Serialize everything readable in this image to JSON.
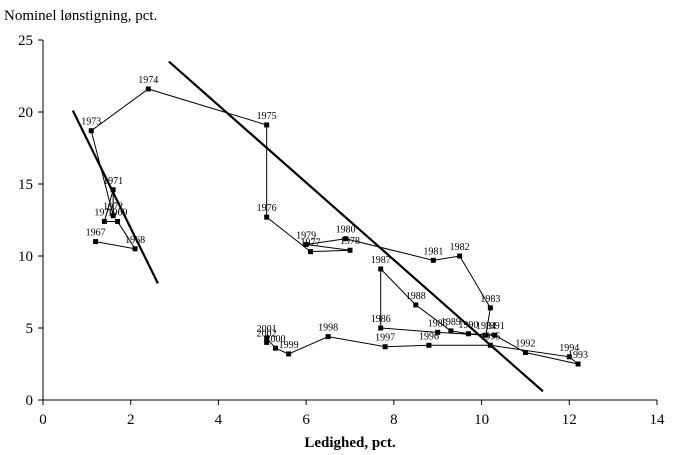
{
  "chart_data": {
    "type": "line",
    "y_label": "Nominel lønstigning, pct.",
    "x_label": "Ledighed, pct.",
    "x": [
      1.2,
      2.1,
      1.7,
      1.4,
      1.6,
      1.6,
      1.1,
      2.4,
      5.1,
      5.1,
      6.1,
      7.0,
      6.0,
      6.9,
      8.9,
      9.5,
      10.2,
      10.1,
      9.0,
      7.7,
      7.7,
      8.5,
      9.3,
      9.7,
      10.3,
      11.0,
      12.2,
      12.0,
      10.2,
      8.8,
      7.8,
      6.5,
      5.6,
      5.3,
      5.1,
      5.1
    ],
    "series": [
      {
        "color": "#000000",
        "values": [
          11.0,
          10.5,
          12.4,
          12.4,
          14.6,
          12.8,
          18.7,
          21.6,
          19.1,
          12.7,
          10.3,
          10.4,
          10.8,
          11.2,
          9.7,
          10.0,
          6.4,
          4.5,
          4.7,
          5.0,
          9.1,
          6.6,
          4.8,
          4.6,
          4.5,
          3.3,
          2.5,
          3.0,
          3.8,
          3.8,
          3.7,
          4.4,
          3.2,
          3.6,
          4.3,
          4.0
        ]
      }
    ],
    "point_labels": [
      "1967",
      "1968",
      "1969",
      "1970",
      "1971",
      "1972",
      "1973",
      "1974",
      "1975",
      "1976",
      "1977",
      "1978",
      "1979",
      "1980",
      "1981",
      "1982",
      "1983",
      "1984",
      "1985",
      "1986",
      "1987",
      "1988",
      "1989",
      "1990",
      "1991",
      "1992",
      "1993",
      "1994",
      "1995",
      "1996",
      "1997",
      "1998",
      "1999",
      "2000",
      "2001",
      "2002"
    ],
    "trend_lines": [
      {
        "color": "#000000",
        "x": [
          0.68,
          2.62
        ],
        "values": [
          20.1,
          8.1
        ]
      },
      {
        "color": "#000000",
        "x": [
          2.87,
          11.4
        ],
        "values": [
          23.5,
          0.6
        ]
      }
    ],
    "xlim": [
      0,
      14
    ],
    "xticks": [
      0,
      2,
      4,
      6,
      8,
      10,
      12,
      14
    ],
    "ylim": [
      0,
      25
    ],
    "yticks": [
      0,
      5,
      10,
      15,
      20,
      25
    ]
  }
}
